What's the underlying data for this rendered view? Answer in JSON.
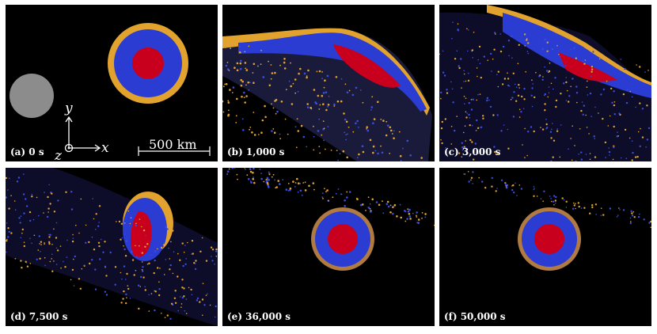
{
  "panels": [
    {
      "id": "a",
      "label": "(a) 0 s"
    },
    {
      "id": "b",
      "label": "(b) 1,000 s"
    },
    {
      "id": "c",
      "label": "(c) 3,000 s"
    },
    {
      "id": "d",
      "label": "(d) 7,500 s"
    },
    {
      "id": "e",
      "label": "(e) 36,000 s"
    },
    {
      "id": "f",
      "label": "(f) 50,000 s"
    }
  ],
  "axes": {
    "x": "x",
    "y": "y",
    "z": "z"
  },
  "scale_bar": {
    "text": "500 km"
  },
  "colors": {
    "background": "#000000",
    "core": "#c8001e",
    "mantle": "#2a3cd2",
    "crust": "#e0a030",
    "impactor": "#8a8a8a"
  }
}
